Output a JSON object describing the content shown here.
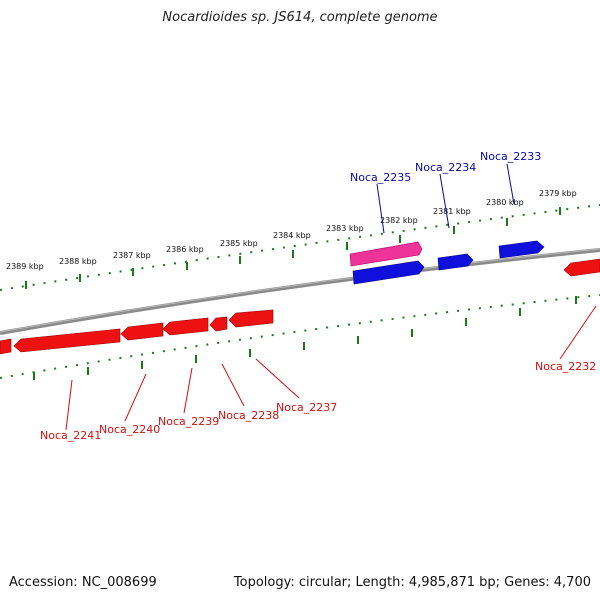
{
  "title": "Nocardioides sp. JS614, complete genome",
  "footer": {
    "accession": "Accession: NC_008699",
    "summary": "Topology: circular; Length: 4,985,871 bp; Genes: 4,700"
  },
  "colors": {
    "backbone": "#8a8a8a",
    "tick": "#1a7a1a",
    "forward_gene": "#1010dd",
    "forward_label": "#0a0aa0",
    "reverse_gene": "#ee1111",
    "reverse_label": "#cc1111",
    "highlight_gene": "#ee3399"
  },
  "kbp_labels": [
    "2389 kbp",
    "2388 kbp",
    "2387 kbp",
    "2386 kbp",
    "2385 kbp",
    "2384 kbp",
    "2383 kbp",
    "2382 kbp",
    "2381 kbp",
    "2380 kbp",
    "2379 kbp"
  ],
  "forward_genes": [
    "Noca_2235",
    "Noca_2234",
    "Noca_2233"
  ],
  "reverse_genes": [
    "Noca_2241",
    "Noca_2240",
    "Noca_2239",
    "Noca_2238",
    "Noca_2237",
    "Noca_2232"
  ]
}
